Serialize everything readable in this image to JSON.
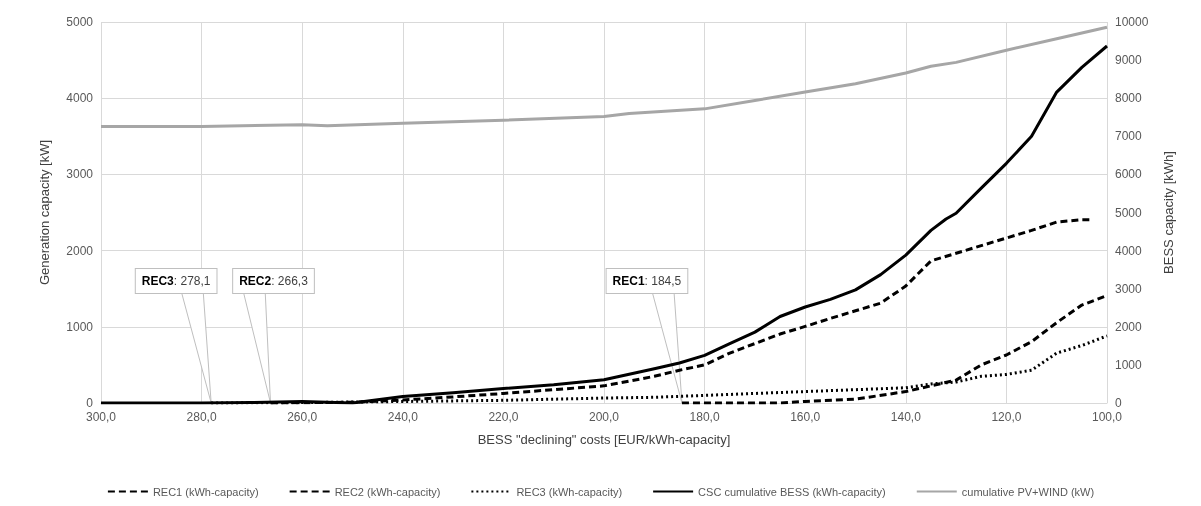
{
  "chart_data": {
    "type": "line",
    "xlabel": "BESS \"declining\" costs [EUR/kWh-capacity]",
    "ylabel": "Generation capacity [kW]",
    "y2label": "BESS capacity [kWh]",
    "xlim": [
      300,
      100
    ],
    "xticks": [
      {
        "value": 300,
        "label": "300,0"
      },
      {
        "value": 280,
        "label": "280,0"
      },
      {
        "value": 260,
        "label": "260,0"
      },
      {
        "value": 240,
        "label": "240,0"
      },
      {
        "value": 220,
        "label": "220,0"
      },
      {
        "value": 200,
        "label": "200,0"
      },
      {
        "value": 180,
        "label": "180,0"
      },
      {
        "value": 160,
        "label": "160,0"
      },
      {
        "value": 140,
        "label": "140,0"
      },
      {
        "value": 120,
        "label": "120,0"
      },
      {
        "value": 100,
        "label": "100,0"
      }
    ],
    "ylim": [
      0,
      5000
    ],
    "yticks": [
      0,
      1000,
      2000,
      3000,
      4000,
      5000
    ],
    "y2lim": [
      0,
      10000
    ],
    "y2ticks": [
      0,
      1000,
      2000,
      3000,
      4000,
      5000,
      6000,
      7000,
      8000,
      9000,
      10000
    ],
    "grid": true,
    "legend": "bottom",
    "marker": "none",
    "series": [
      {
        "name": "REC1 (kWh-capacity)",
        "color": "#000000",
        "line_style": "dashed",
        "axis": "y2",
        "x": [
          184.5,
          170,
          165,
          160,
          150,
          140,
          135,
          130,
          125,
          120,
          115,
          110,
          105,
          100
        ],
        "values": [
          0,
          0,
          0,
          40,
          100,
          300,
          450,
          600,
          1000,
          1260,
          1610,
          2110,
          2570,
          2820
        ]
      },
      {
        "name": "REC2 (kWh-capacity)",
        "color": "#000000",
        "line_style": "dashed",
        "axis": "y2",
        "x": [
          266.3,
          250,
          240,
          230,
          220,
          210,
          200,
          190,
          185,
          180,
          175,
          170,
          165,
          160,
          155,
          150,
          145,
          140,
          135,
          130,
          125,
          120,
          115,
          110,
          105,
          103
        ],
        "values": [
          0,
          20,
          80,
          160,
          250,
          350,
          450,
          700,
          860,
          1000,
          1310,
          1560,
          1810,
          2010,
          2220,
          2420,
          2620,
          3070,
          3730,
          3930,
          4130,
          4330,
          4530,
          4750,
          4810,
          4810
        ]
      },
      {
        "name": "REC3 (kWh-capacity)",
        "color": "#000000",
        "line_style": "dotted",
        "axis": "y2",
        "x": [
          278.1,
          260,
          240,
          220,
          200,
          190,
          180,
          170,
          160,
          150,
          140,
          135,
          130,
          125,
          120,
          115,
          110,
          105,
          100
        ],
        "values": [
          0,
          10,
          40,
          70,
          130,
          150,
          200,
          250,
          300,
          350,
          400,
          500,
          550,
          700,
          750,
          860,
          1310,
          1510,
          1760
        ]
      },
      {
        "name": "CSC cumulative BESS (kWh-capacity)",
        "color": "#000000",
        "line_style": "solid",
        "axis": "y2",
        "x": [
          300,
          280,
          270,
          260,
          250,
          240,
          230,
          220,
          210,
          200,
          190,
          185,
          180,
          175,
          170,
          165,
          160,
          155,
          150,
          145,
          140,
          135,
          132,
          130,
          125,
          120,
          115,
          110,
          105,
          100
        ],
        "values": [
          0,
          0,
          10,
          40,
          0,
          170,
          270,
          380,
          480,
          610,
          900,
          1050,
          1250,
          1560,
          1860,
          2270,
          2520,
          2720,
          2970,
          3370,
          3880,
          4530,
          4830,
          4980,
          5640,
          6290,
          7000,
          8160,
          8810,
          9370
        ]
      },
      {
        "name": "cumulative PV+WIND (kW)",
        "color": "#a6a6a6",
        "line_style": "solid",
        "axis": "y",
        "x": [
          300,
          280,
          260,
          255,
          240,
          220,
          200,
          195,
          180,
          170,
          160,
          150,
          140,
          135,
          130,
          120,
          110,
          100
        ],
        "values": [
          3630,
          3630,
          3650,
          3640,
          3670,
          3710,
          3760,
          3800,
          3860,
          3970,
          4080,
          4190,
          4330,
          4420,
          4470,
          4630,
          4780,
          4930
        ]
      }
    ],
    "annotations": [
      {
        "text": "REC3: 278,1",
        "x": 278.1,
        "y": 0
      },
      {
        "text": "REC2: 266,3",
        "x": 266.3,
        "y": 0
      },
      {
        "text": "REC1: 184,5",
        "x": 184.5,
        "y": 0
      }
    ]
  }
}
